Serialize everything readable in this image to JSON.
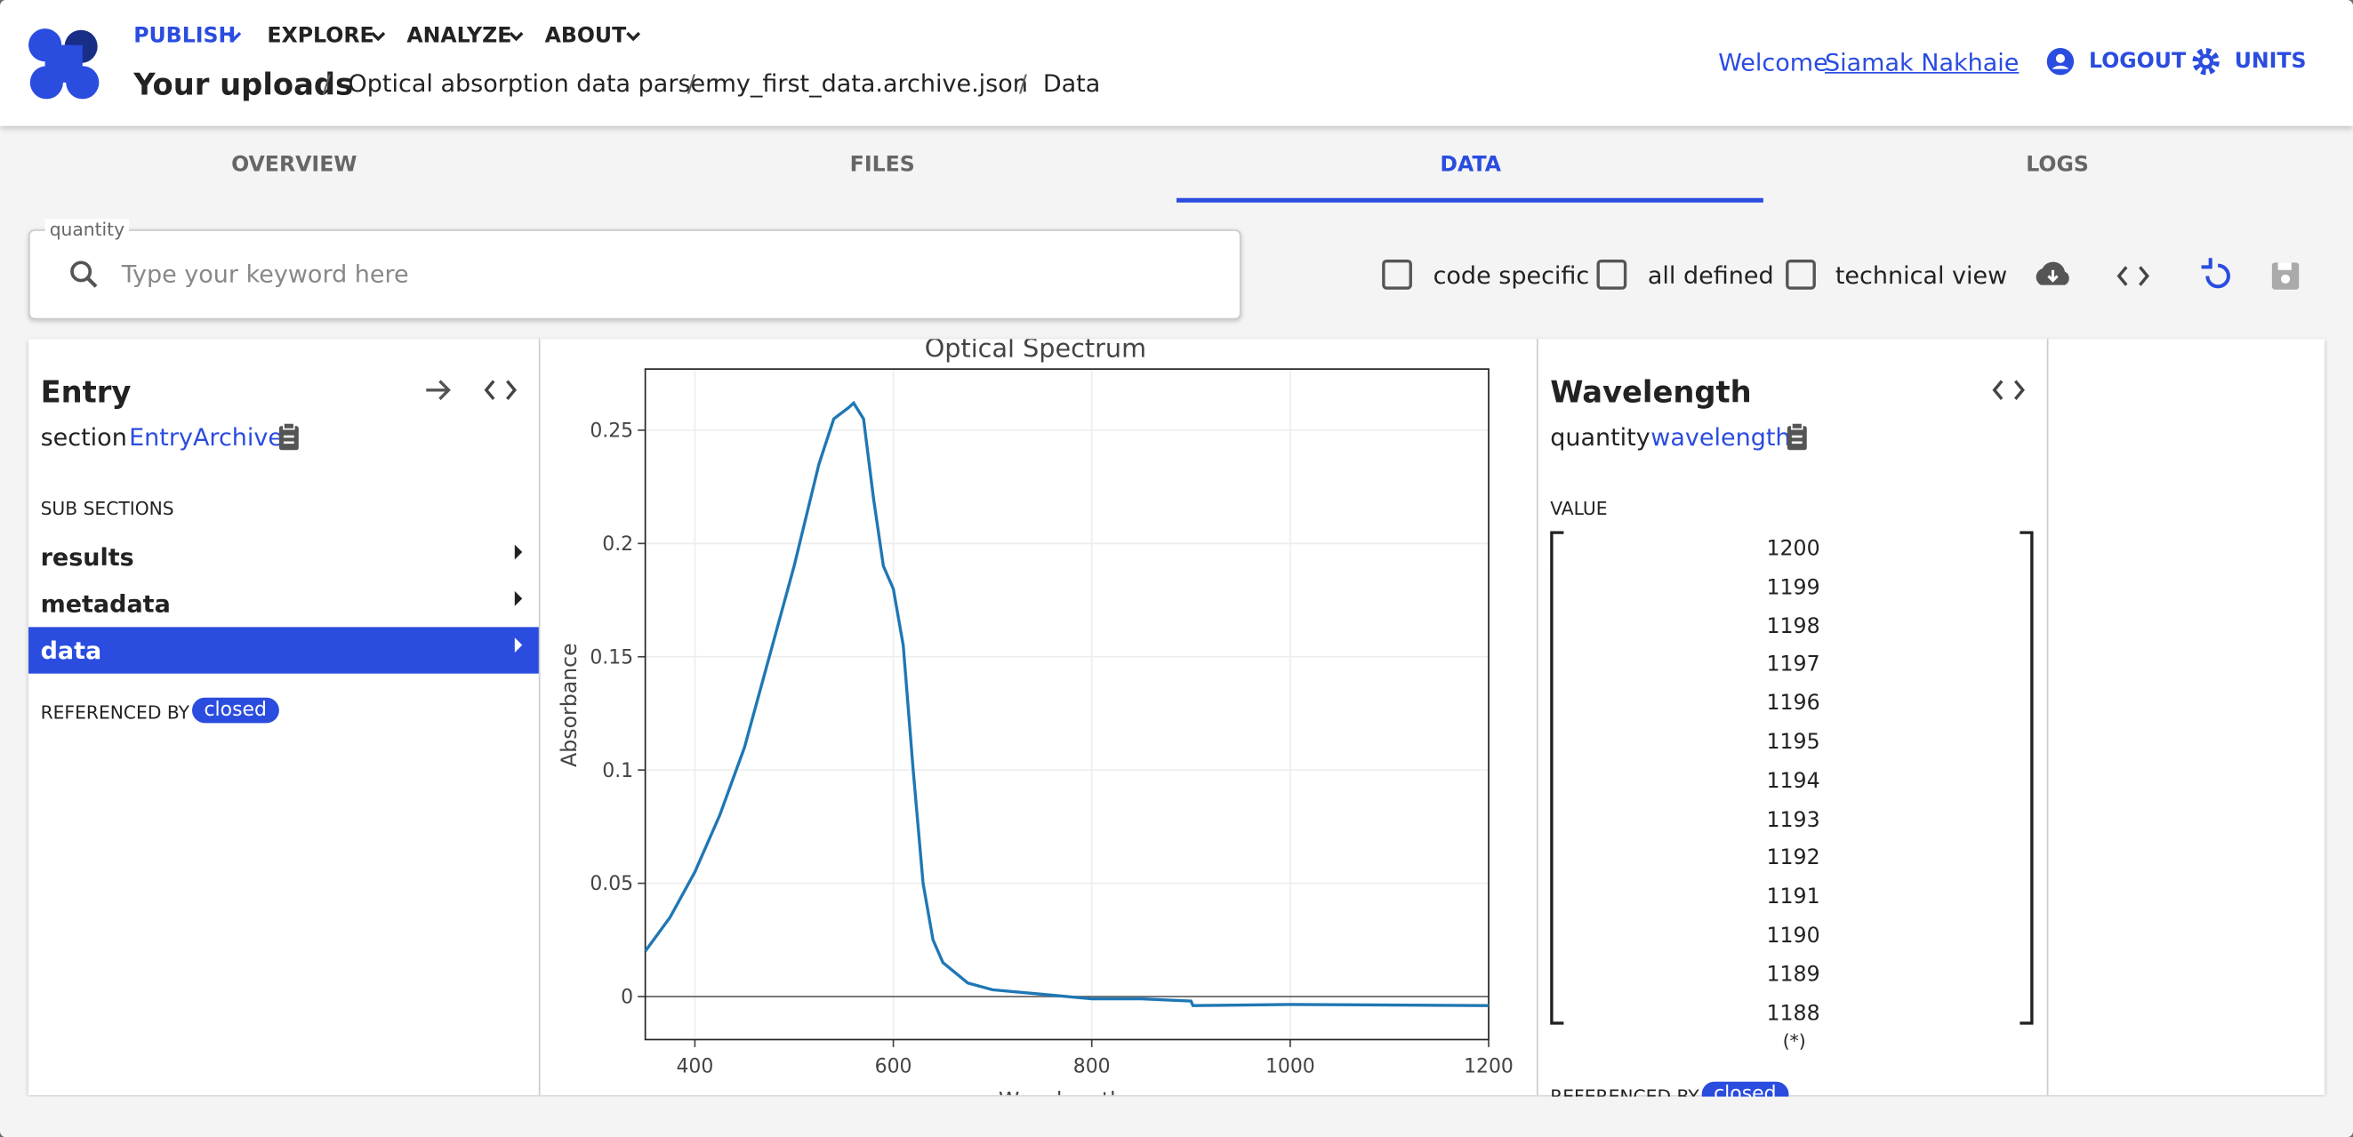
{
  "header": {
    "nav": [
      "PUBLISH",
      "EXPLORE",
      "ANALYZE",
      "ABOUT"
    ],
    "breadcrumb": [
      "Your uploads",
      "Optical absorption data parser",
      "my_first_data.archive.json",
      "Data"
    ],
    "welcome": "Welcome",
    "user": "Siamak Nakhaie",
    "logout": "LOGOUT",
    "units": "UNITS"
  },
  "tabs": [
    "OVERVIEW",
    "FILES",
    "DATA",
    "LOGS"
  ],
  "search": {
    "label": "quantity",
    "placeholder": "Type your keyword here"
  },
  "options": [
    "code specific",
    "all defined",
    "technical view"
  ],
  "entry": {
    "title": "Entry",
    "kind": "section",
    "section": "EntryArchive",
    "sub_sections_label": "SUB SECTIONS",
    "sub_sections": [
      "results",
      "metadata",
      "data"
    ],
    "referenced_by": "REFERENCED BY",
    "referenced_state": "closed"
  },
  "chart_data": {
    "type": "line",
    "title": "Optical Spectrum",
    "x_label": "Wavelength",
    "y_label": "Absorbance",
    "x": [
      350,
      375,
      400,
      425,
      450,
      475,
      500,
      525,
      540,
      555,
      560,
      570,
      580,
      590,
      600,
      610,
      620,
      630,
      640,
      650,
      675,
      700,
      750,
      800,
      850,
      900,
      902,
      1000,
      1200
    ],
    "values": [
      0.02,
      0.035,
      0.055,
      0.08,
      0.11,
      0.15,
      0.19,
      0.235,
      0.255,
      0.26,
      0.262,
      0.255,
      0.22,
      0.19,
      0.18,
      0.155,
      0.1,
      0.05,
      0.025,
      0.015,
      0.006,
      0.003,
      0.001,
      -0.001,
      -0.001,
      -0.002,
      -0.004,
      -0.0035,
      -0.004
    ],
    "color": "#1f77b4",
    "xlim": [
      350,
      1200
    ],
    "ylim": [
      -0.019,
      0.277
    ],
    "xticks": [
      400,
      600,
      800,
      1000,
      1200
    ],
    "yticks": [
      0,
      0.05,
      0.1,
      0.15,
      0.2,
      0.25
    ],
    "grid": true
  },
  "quantity": {
    "title": "Wavelength",
    "kind": "quantity",
    "name": "wavelength",
    "value_label": "VALUE",
    "values": [
      1200,
      1199,
      1198,
      1197,
      1196,
      1195,
      1194,
      1193,
      1192,
      1191,
      1190,
      1189,
      1188
    ],
    "shape": "(*)",
    "referenced_by": "REFERENCED BY",
    "referenced_state": "closed"
  }
}
